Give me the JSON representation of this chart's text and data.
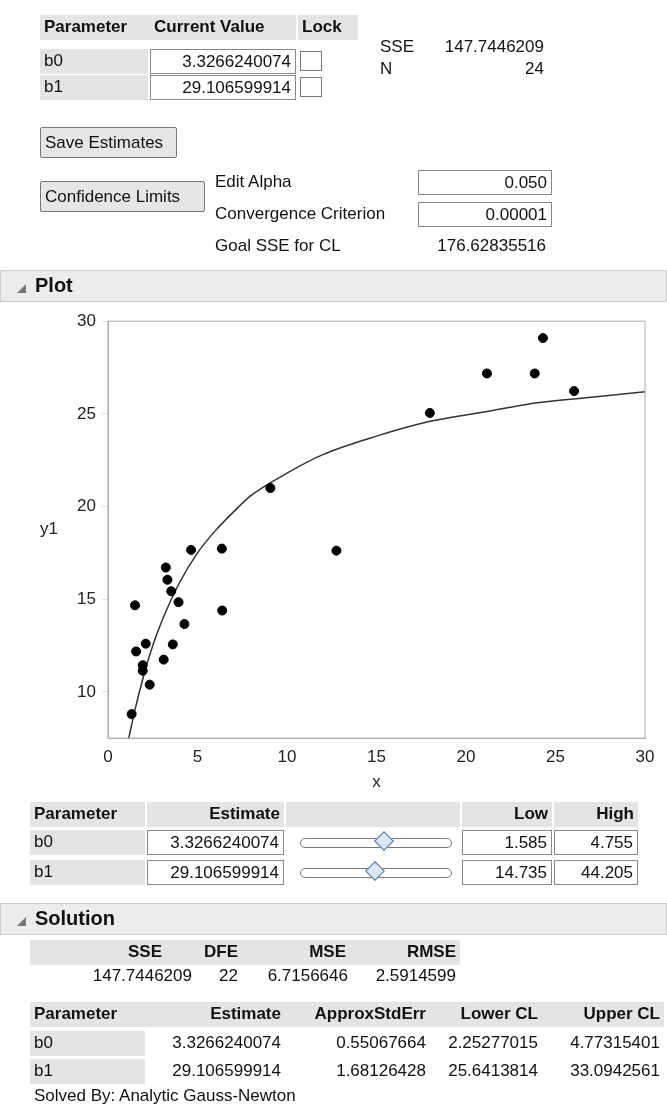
{
  "chart_data": [
    {
      "type": "other",
      "annotations": [
        "Parameter",
        "Current Value",
        "Lock",
        "b0",
        "3.3266240074",
        "b1",
        "29.106599914",
        "SSE",
        "147.7446209",
        "N",
        "24",
        "Save Estimates",
        "Confidence Limits",
        "Edit Alpha",
        "0.050",
        "Convergence Criterion",
        "0.00001",
        "Goal SSE for CL",
        "176.62835516"
      ]
    },
    {
      "type": "scatter",
      "title": "Plot",
      "xlabel": "x",
      "ylabel": "y1",
      "xlim": [
        0,
        30
      ],
      "ylim": [
        7.5,
        30
      ],
      "xticks": [
        0,
        5,
        10,
        15,
        20,
        25,
        30
      ],
      "yticks": [
        10,
        15,
        20,
        25,
        30
      ],
      "marker": "circle",
      "series": [
        {
          "color": "#000000",
          "x": [
            1.51,
            1.57,
            2.11,
            1.94,
            1.94,
            2.33,
            1.32,
            3.23,
            3.32,
            3.53,
            3.94,
            4.27,
            3.11,
            3.62,
            4.64,
            6.36,
            6.38,
            9.07,
            12.76,
            17.98,
            21.17,
            23.84,
            24.3,
            26.04
          ],
          "values": [
            14.67,
            12.18,
            12.6,
            11.44,
            11.14,
            10.39,
            8.8,
            16.71,
            16.05,
            15.43,
            14.84,
            13.66,
            11.74,
            12.56,
            17.66,
            17.73,
            14.39,
            21.0,
            17.62,
            25.05,
            27.18,
            27.18,
            29.09,
            26.23
          ]
        },
        {
          "type": "line",
          "marker": "none",
          "color": "#333333",
          "x": [
            1.16,
            1.5,
            2,
            2.5,
            3,
            4,
            5,
            6,
            7,
            8,
            10,
            12,
            15,
            18,
            21,
            24,
            27,
            30
          ],
          "values": [
            7.5,
            9.0,
            10.9,
            12.5,
            13.8,
            15.9,
            17.5,
            18.7,
            19.7,
            20.6,
            21.8,
            22.8,
            23.8,
            24.6,
            25.1,
            25.6,
            25.9,
            26.2
          ]
        }
      ]
    },
    {
      "type": "other",
      "annotations": [
        "Parameter",
        "Estimate",
        "Low",
        "High",
        "b0",
        "3.3266240074",
        "1.585",
        "4.755",
        "b1",
        "29.106599914",
        "14.735",
        "44.205"
      ]
    },
    {
      "type": "other",
      "title": "Solution",
      "annotations": [
        "SSE",
        "DFE",
        "MSE",
        "RMSE",
        "147.7446209",
        "22",
        "6.7156646",
        "2.5914599",
        "Parameter",
        "Estimate",
        "ApproxStdErr",
        "Lower CL",
        "Upper CL",
        "b0",
        "3.3266240074",
        "0.55067664",
        "2.25277015",
        "4.77315401",
        "b1",
        "29.106599914",
        "1.68126428",
        "25.6413814",
        "33.0942561",
        "Solved By: Analytic Gauss-Newton"
      ]
    }
  ]
}
